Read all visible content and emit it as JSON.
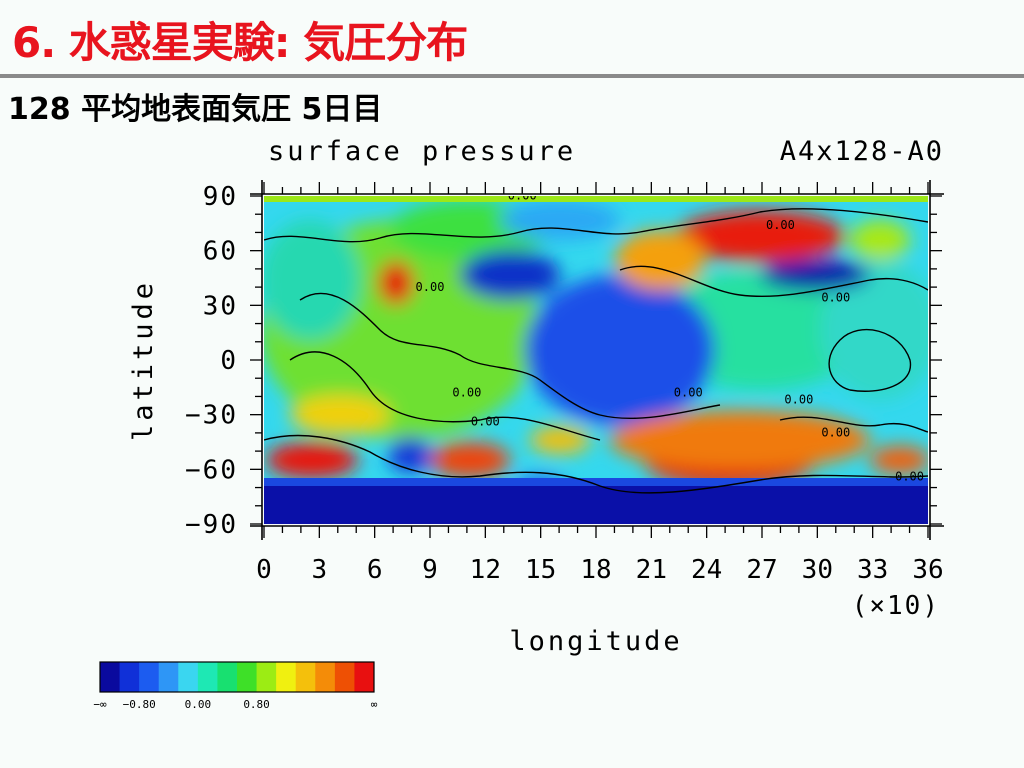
{
  "slide": {
    "title": "6. 水惑星実験: 気圧分布",
    "subtitle": "128 平均地表面気圧 5日目"
  },
  "chart_data": {
    "type": "heatmap",
    "title": "surface pressure",
    "experiment_label": "A4x128-A0",
    "xlabel": "longitude",
    "ylabel": "latitude",
    "x_multiplier_label": "(×10)",
    "xlim": [
      0,
      36
    ],
    "ylim": [
      -90,
      90
    ],
    "x_ticks": [
      "0",
      "3",
      "6",
      "9",
      "12",
      "15",
      "18",
      "21",
      "24",
      "27",
      "30",
      "33",
      "36"
    ],
    "y_ticks": [
      "90",
      "60",
      "30",
      "0",
      "−30",
      "−60",
      "−90"
    ],
    "contour_labels": [
      {
        "text": "0.00",
        "lon": 14,
        "lat": 88
      },
      {
        "text": "0.00",
        "lon": 28,
        "lat": 72
      },
      {
        "text": "0.00",
        "lon": 9,
        "lat": 38
      },
      {
        "text": "0.00",
        "lon": 38,
        "lat": 38
      },
      {
        "text": "0.00",
        "lon": 31,
        "lat": 32
      },
      {
        "text": "0.00",
        "lon": 11,
        "lat": -20
      },
      {
        "text": "0.00",
        "lon": 12,
        "lat": -36
      },
      {
        "text": "0.00",
        "lon": 23,
        "lat": -20
      },
      {
        "text": "0.00",
        "lon": 29,
        "lat": -24
      },
      {
        "text": "0.00",
        "lon": 35,
        "lat": -66
      },
      {
        "text": "0.00",
        "lon": 31,
        "lat": -42
      }
    ],
    "colorbar": {
      "colors": [
        "#0a0a9e",
        "#1030d8",
        "#1c5cf0",
        "#2e96f6",
        "#3ad6f0",
        "#1ee8b4",
        "#18e070",
        "#3ee028",
        "#9cec14",
        "#f0f010",
        "#f4c00c",
        "#f48c08",
        "#ee5004",
        "#e81010"
      ],
      "labels": [
        "−∞",
        "−0.80",
        "0.00",
        "0.80",
        "∞"
      ]
    },
    "field_description_regions": []
  }
}
